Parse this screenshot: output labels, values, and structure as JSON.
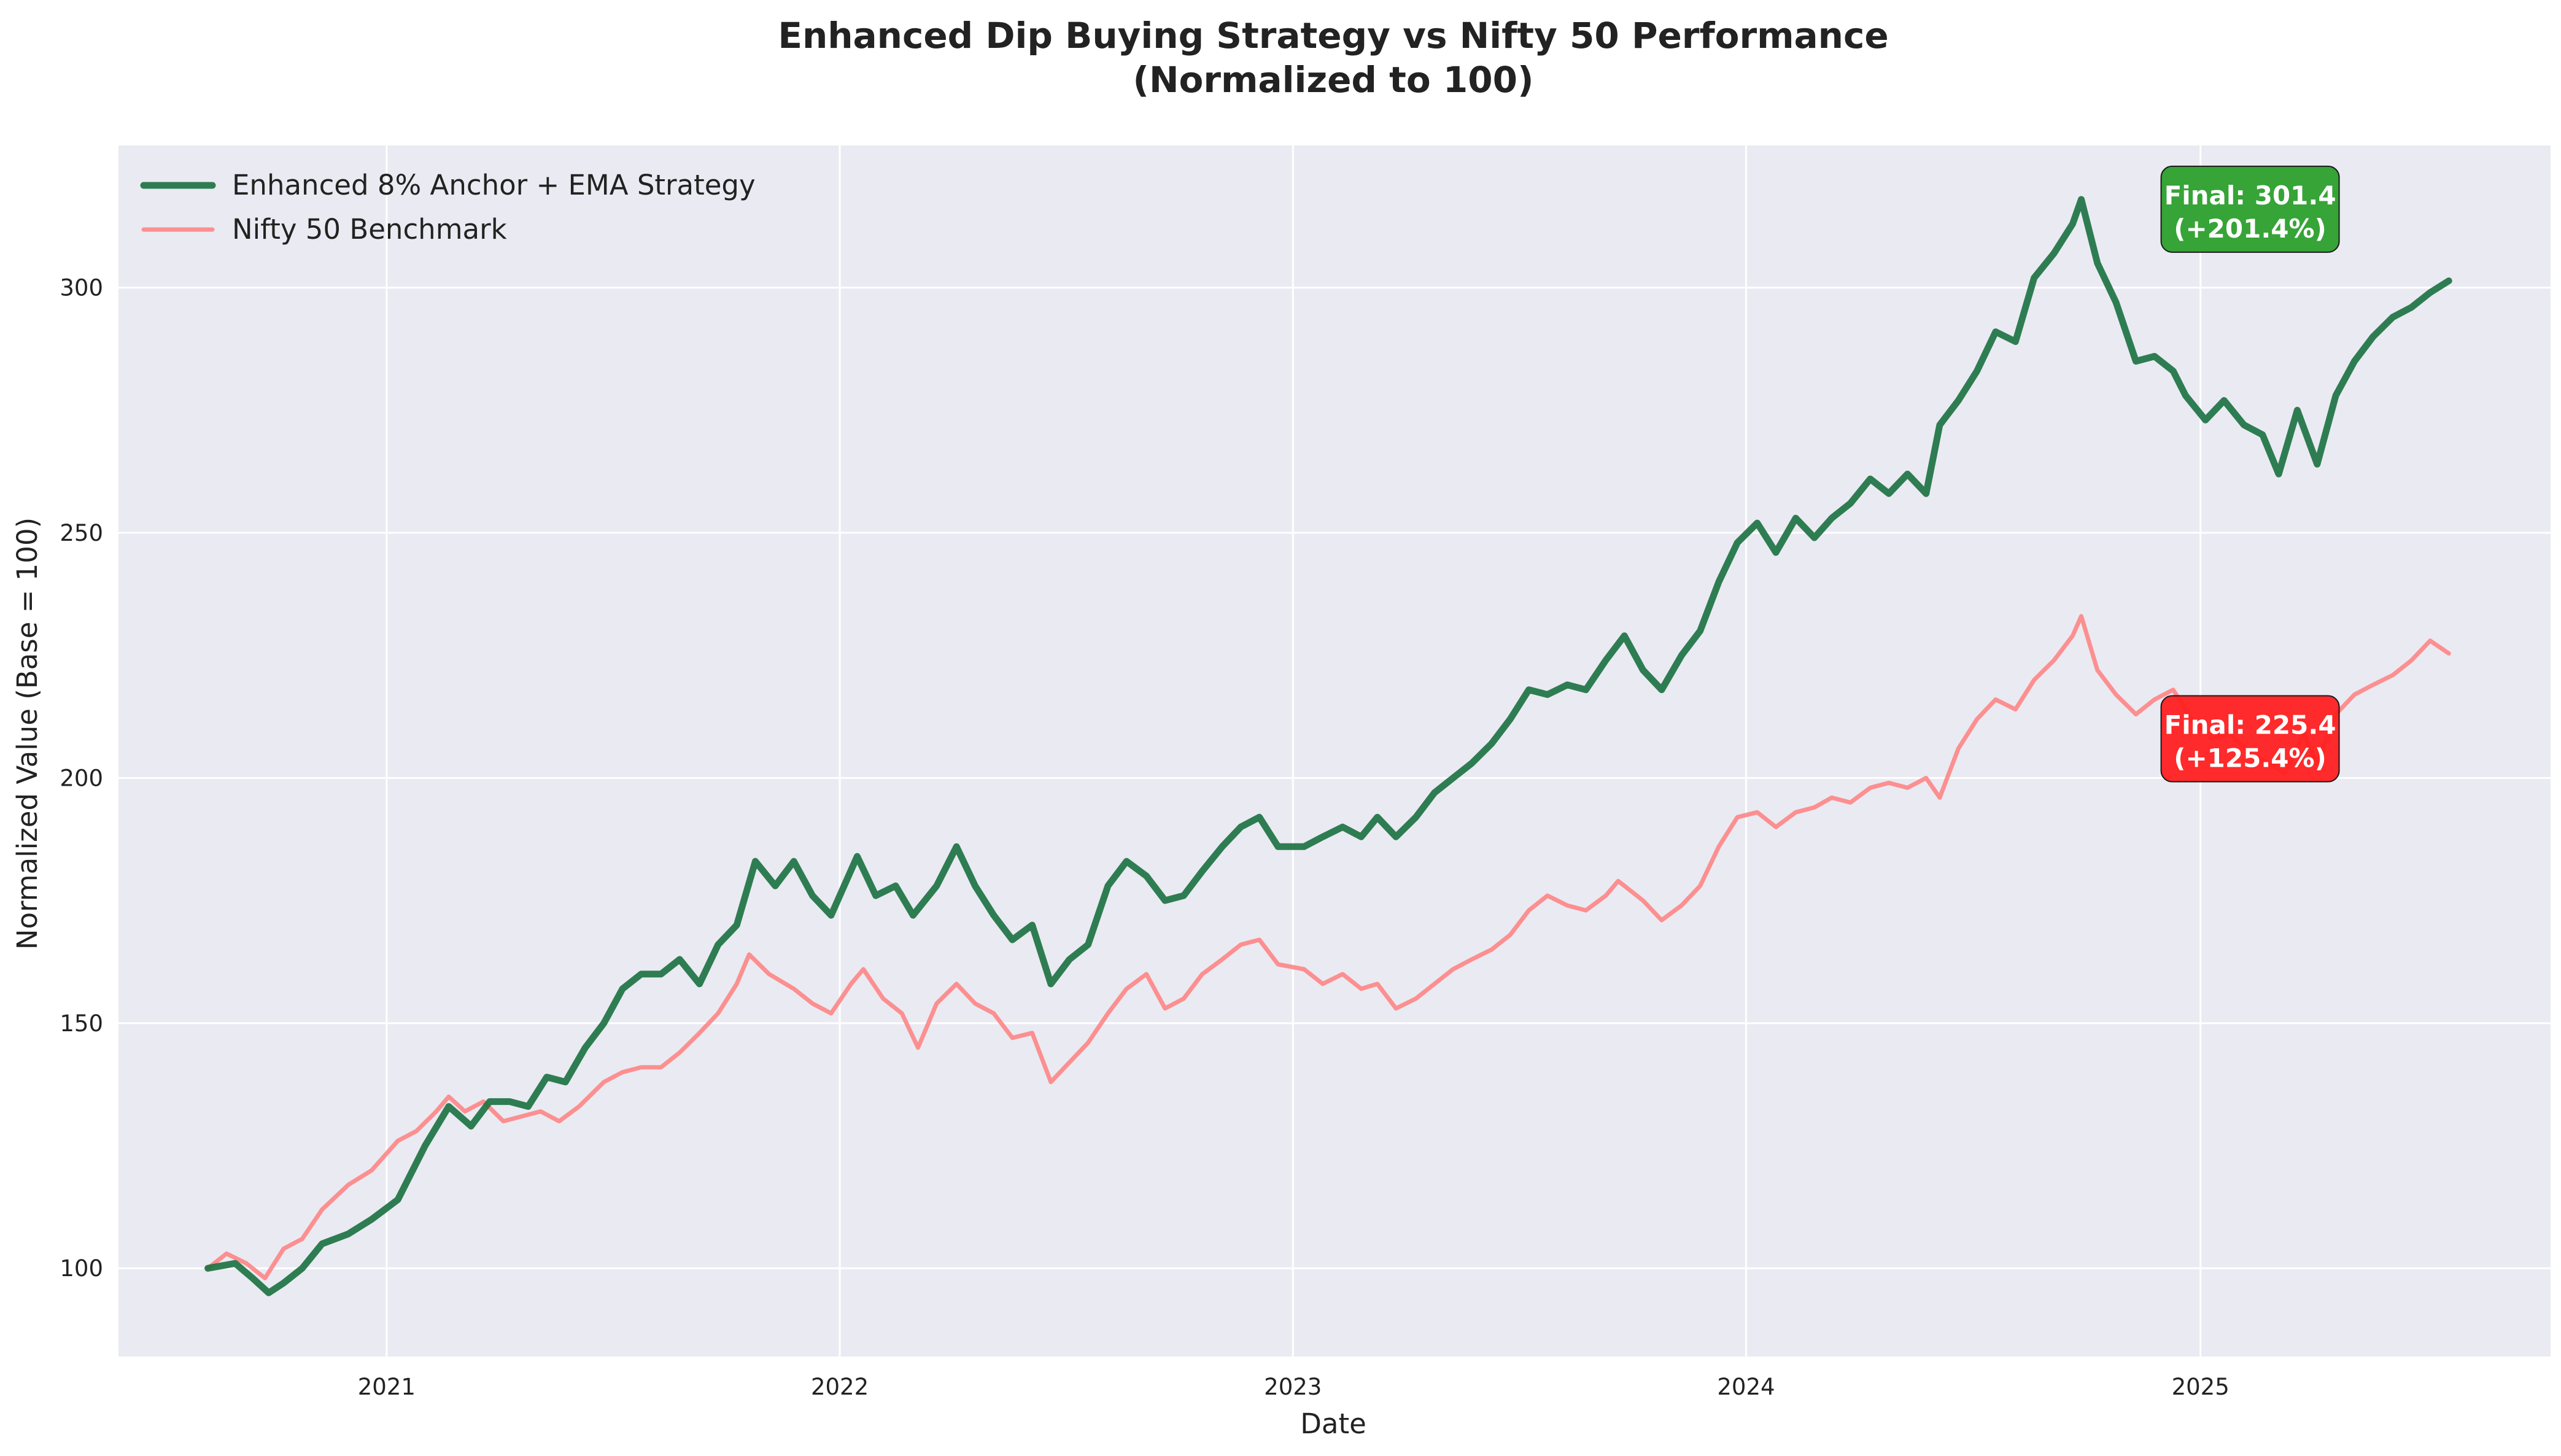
{
  "chart_data": {
    "type": "line",
    "title": "Enhanced Dip Buying Strategy vs Nifty 50 Performance",
    "subtitle": "(Normalized to 100)",
    "xlabel": "Date",
    "ylabel": "Normalized Value (Base = 100)",
    "xlim": [
      "2020-05-30",
      "2025-10-10"
    ],
    "ylim": [
      82,
      329
    ],
    "x_ticks": [
      "2021",
      "2022",
      "2023",
      "2024",
      "2025"
    ],
    "y_ticks": [
      100,
      150,
      200,
      250,
      300
    ],
    "grid": true,
    "legend_position": "top-left",
    "background_color": "#eaeaf2",
    "series": [
      {
        "name": "Enhanced 8% Anchor + EMA Strategy",
        "color": "#1a7140",
        "points": [
          [
            "2020-08-10",
            100
          ],
          [
            "2020-09-01",
            101
          ],
          [
            "2020-09-15",
            98
          ],
          [
            "2020-09-28",
            95
          ],
          [
            "2020-10-10",
            97
          ],
          [
            "2020-10-25",
            100
          ],
          [
            "2020-11-10",
            105
          ],
          [
            "2020-12-01",
            107
          ],
          [
            "2020-12-20",
            110
          ],
          [
            "2021-01-10",
            114
          ],
          [
            "2021-02-01",
            125
          ],
          [
            "2021-02-20",
            133
          ],
          [
            "2021-03-10",
            129
          ],
          [
            "2021-03-25",
            134
          ],
          [
            "2021-04-10",
            134
          ],
          [
            "2021-04-25",
            133
          ],
          [
            "2021-05-10",
            139
          ],
          [
            "2021-05-25",
            138
          ],
          [
            "2021-06-10",
            145
          ],
          [
            "2021-06-25",
            150
          ],
          [
            "2021-07-10",
            157
          ],
          [
            "2021-07-25",
            160
          ],
          [
            "2021-08-10",
            160
          ],
          [
            "2021-08-25",
            163
          ],
          [
            "2021-09-10",
            158
          ],
          [
            "2021-09-25",
            166
          ],
          [
            "2021-10-10",
            170
          ],
          [
            "2021-10-25",
            183
          ],
          [
            "2021-11-10",
            178
          ],
          [
            "2021-11-25",
            183
          ],
          [
            "2021-12-10",
            176
          ],
          [
            "2021-12-25",
            172
          ],
          [
            "2022-01-15",
            184
          ],
          [
            "2022-01-30",
            176
          ],
          [
            "2022-02-15",
            178
          ],
          [
            "2022-03-01",
            172
          ],
          [
            "2022-03-20",
            178
          ],
          [
            "2022-04-05",
            186
          ],
          [
            "2022-04-20",
            178
          ],
          [
            "2022-05-05",
            172
          ],
          [
            "2022-05-20",
            167
          ],
          [
            "2022-06-05",
            170
          ],
          [
            "2022-06-20",
            158
          ],
          [
            "2022-07-05",
            163
          ],
          [
            "2022-07-20",
            166
          ],
          [
            "2022-08-05",
            178
          ],
          [
            "2022-08-20",
            183
          ],
          [
            "2022-09-05",
            180
          ],
          [
            "2022-09-20",
            175
          ],
          [
            "2022-10-05",
            176
          ],
          [
            "2022-10-20",
            181
          ],
          [
            "2022-11-05",
            186
          ],
          [
            "2022-11-20",
            190
          ],
          [
            "2022-12-05",
            192
          ],
          [
            "2022-12-20",
            186
          ],
          [
            "2023-01-10",
            186
          ],
          [
            "2023-01-25",
            188
          ],
          [
            "2023-02-10",
            190
          ],
          [
            "2023-02-25",
            188
          ],
          [
            "2023-03-10",
            192
          ],
          [
            "2023-03-25",
            188
          ],
          [
            "2023-04-10",
            192
          ],
          [
            "2023-04-25",
            197
          ],
          [
            "2023-05-10",
            200
          ],
          [
            "2023-05-25",
            203
          ],
          [
            "2023-06-10",
            207
          ],
          [
            "2023-06-25",
            212
          ],
          [
            "2023-07-10",
            218
          ],
          [
            "2023-07-25",
            217
          ],
          [
            "2023-08-10",
            219
          ],
          [
            "2023-08-25",
            218
          ],
          [
            "2023-09-10",
            224
          ],
          [
            "2023-09-25",
            229
          ],
          [
            "2023-10-10",
            222
          ],
          [
            "2023-10-25",
            218
          ],
          [
            "2023-11-10",
            225
          ],
          [
            "2023-11-25",
            230
          ],
          [
            "2023-12-10",
            240
          ],
          [
            "2023-12-25",
            248
          ],
          [
            "2024-01-10",
            252
          ],
          [
            "2024-01-25",
            246
          ],
          [
            "2024-02-10",
            253
          ],
          [
            "2024-02-25",
            249
          ],
          [
            "2024-03-10",
            253
          ],
          [
            "2024-03-25",
            256
          ],
          [
            "2024-04-10",
            261
          ],
          [
            "2024-04-25",
            258
          ],
          [
            "2024-05-10",
            262
          ],
          [
            "2024-05-25",
            258
          ],
          [
            "2024-06-05",
            272
          ],
          [
            "2024-06-20",
            277
          ],
          [
            "2024-07-05",
            283
          ],
          [
            "2024-07-20",
            291
          ],
          [
            "2024-08-05",
            289
          ],
          [
            "2024-08-20",
            302
          ],
          [
            "2024-09-05",
            307
          ],
          [
            "2024-09-20",
            313
          ],
          [
            "2024-09-27",
            318
          ],
          [
            "2024-10-10",
            305
          ],
          [
            "2024-10-25",
            297
          ],
          [
            "2024-11-10",
            285
          ],
          [
            "2024-11-25",
            286
          ],
          [
            "2024-12-10",
            283
          ],
          [
            "2024-12-20",
            278
          ],
          [
            "2025-01-05",
            273
          ],
          [
            "2025-01-20",
            277
          ],
          [
            "2025-02-05",
            272
          ],
          [
            "2025-02-20",
            270
          ],
          [
            "2025-03-05",
            262
          ],
          [
            "2025-03-20",
            275
          ],
          [
            "2025-04-05",
            264
          ],
          [
            "2025-04-20",
            278
          ],
          [
            "2025-05-05",
            285
          ],
          [
            "2025-05-20",
            290
          ],
          [
            "2025-06-05",
            294
          ],
          [
            "2025-06-20",
            296
          ],
          [
            "2025-07-05",
            299
          ],
          [
            "2025-07-20",
            301.4
          ]
        ]
      },
      {
        "name": "Nifty 50 Benchmark",
        "color": "#ff7f7f",
        "points": [
          [
            "2020-08-10",
            100
          ],
          [
            "2020-08-25",
            103
          ],
          [
            "2020-09-10",
            101
          ],
          [
            "2020-09-25",
            98
          ],
          [
            "2020-10-10",
            104
          ],
          [
            "2020-10-25",
            106
          ],
          [
            "2020-11-10",
            112
          ],
          [
            "2020-12-01",
            117
          ],
          [
            "2020-12-20",
            120
          ],
          [
            "2021-01-10",
            126
          ],
          [
            "2021-01-25",
            128
          ],
          [
            "2021-02-10",
            132
          ],
          [
            "2021-02-20",
            135
          ],
          [
            "2021-03-05",
            132
          ],
          [
            "2021-03-20",
            134
          ],
          [
            "2021-04-05",
            130
          ],
          [
            "2021-04-20",
            131
          ],
          [
            "2021-05-05",
            132
          ],
          [
            "2021-05-20",
            130
          ],
          [
            "2021-06-05",
            133
          ],
          [
            "2021-06-25",
            138
          ],
          [
            "2021-07-10",
            140
          ],
          [
            "2021-07-25",
            141
          ],
          [
            "2021-08-10",
            141
          ],
          [
            "2021-08-25",
            144
          ],
          [
            "2021-09-10",
            148
          ],
          [
            "2021-09-25",
            152
          ],
          [
            "2021-10-10",
            158
          ],
          [
            "2021-10-20",
            164
          ],
          [
            "2021-11-05",
            160
          ],
          [
            "2021-11-25",
            157
          ],
          [
            "2021-12-10",
            154
          ],
          [
            "2021-12-25",
            152
          ],
          [
            "2022-01-10",
            158
          ],
          [
            "2022-01-20",
            161
          ],
          [
            "2022-02-05",
            155
          ],
          [
            "2022-02-20",
            152
          ],
          [
            "2022-03-05",
            145
          ],
          [
            "2022-03-20",
            154
          ],
          [
            "2022-04-05",
            158
          ],
          [
            "2022-04-20",
            154
          ],
          [
            "2022-05-05",
            152
          ],
          [
            "2022-05-20",
            147
          ],
          [
            "2022-06-05",
            148
          ],
          [
            "2022-06-20",
            138
          ],
          [
            "2022-07-05",
            142
          ],
          [
            "2022-07-20",
            146
          ],
          [
            "2022-08-05",
            152
          ],
          [
            "2022-08-20",
            157
          ],
          [
            "2022-09-05",
            160
          ],
          [
            "2022-09-20",
            153
          ],
          [
            "2022-10-05",
            155
          ],
          [
            "2022-10-20",
            160
          ],
          [
            "2022-11-05",
            163
          ],
          [
            "2022-11-20",
            166
          ],
          [
            "2022-12-05",
            167
          ],
          [
            "2022-12-20",
            162
          ],
          [
            "2023-01-10",
            161
          ],
          [
            "2023-01-25",
            158
          ],
          [
            "2023-02-10",
            160
          ],
          [
            "2023-02-25",
            157
          ],
          [
            "2023-03-10",
            158
          ],
          [
            "2023-03-25",
            153
          ],
          [
            "2023-04-10",
            155
          ],
          [
            "2023-04-25",
            158
          ],
          [
            "2023-05-10",
            161
          ],
          [
            "2023-05-25",
            163
          ],
          [
            "2023-06-10",
            165
          ],
          [
            "2023-06-25",
            168
          ],
          [
            "2023-07-10",
            173
          ],
          [
            "2023-07-25",
            176
          ],
          [
            "2023-08-10",
            174
          ],
          [
            "2023-08-25",
            173
          ],
          [
            "2023-09-10",
            176
          ],
          [
            "2023-09-20",
            179
          ],
          [
            "2023-10-10",
            175
          ],
          [
            "2023-10-25",
            171
          ],
          [
            "2023-11-10",
            174
          ],
          [
            "2023-11-25",
            178
          ],
          [
            "2023-12-10",
            186
          ],
          [
            "2023-12-25",
            192
          ],
          [
            "2024-01-10",
            193
          ],
          [
            "2024-01-25",
            190
          ],
          [
            "2024-02-10",
            193
          ],
          [
            "2024-02-25",
            194
          ],
          [
            "2024-03-10",
            196
          ],
          [
            "2024-03-25",
            195
          ],
          [
            "2024-04-10",
            198
          ],
          [
            "2024-04-25",
            199
          ],
          [
            "2024-05-10",
            198
          ],
          [
            "2024-05-25",
            200
          ],
          [
            "2024-06-05",
            196
          ],
          [
            "2024-06-20",
            206
          ],
          [
            "2024-07-05",
            212
          ],
          [
            "2024-07-20",
            216
          ],
          [
            "2024-08-05",
            214
          ],
          [
            "2024-08-20",
            220
          ],
          [
            "2024-09-05",
            224
          ],
          [
            "2024-09-20",
            229
          ],
          [
            "2024-09-27",
            233
          ],
          [
            "2024-10-10",
            222
          ],
          [
            "2024-10-25",
            217
          ],
          [
            "2024-11-10",
            213
          ],
          [
            "2024-11-25",
            216
          ],
          [
            "2024-12-10",
            218
          ],
          [
            "2024-12-25",
            212
          ],
          [
            "2025-01-10",
            208
          ],
          [
            "2025-01-25",
            209
          ],
          [
            "2025-02-10",
            205
          ],
          [
            "2025-02-25",
            203
          ],
          [
            "2025-03-10",
            201
          ],
          [
            "2025-03-25",
            209
          ],
          [
            "2025-04-05",
            203
          ],
          [
            "2025-04-20",
            213
          ],
          [
            "2025-05-05",
            217
          ],
          [
            "2025-05-20",
            219
          ],
          [
            "2025-06-05",
            221
          ],
          [
            "2025-06-20",
            224
          ],
          [
            "2025-07-05",
            228
          ],
          [
            "2025-07-20",
            225.4
          ]
        ]
      }
    ],
    "annotations": [
      {
        "line1": "Final: 301.4",
        "line2": "(+201.4%)",
        "color": "#2ca02c",
        "anchor_date": "2025-02-10",
        "anchor_value": 316
      },
      {
        "line1": "Final: 225.4",
        "line2": "(+125.4%)",
        "color": "#ff2020",
        "anchor_date": "2025-02-10",
        "anchor_value": 208
      }
    ]
  }
}
